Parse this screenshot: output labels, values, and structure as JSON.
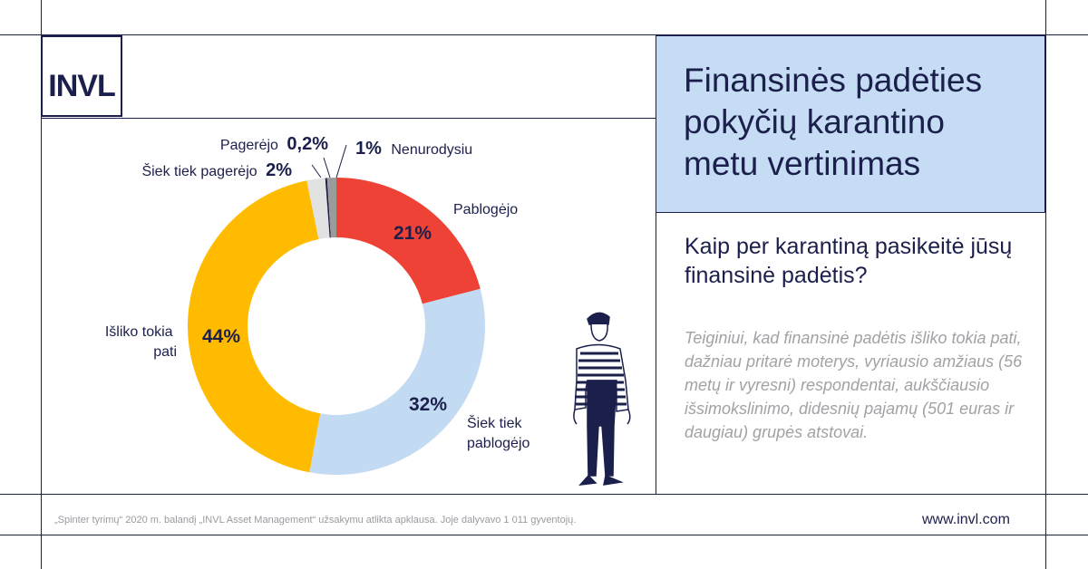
{
  "logo": {
    "text": "INVL"
  },
  "title": "Finansinės padėties pokyčių karantino metu vertinimas",
  "question": "Kaip per karantiną pasikeitė jūsų finansinė padėtis?",
  "note": "Teiginiui, kad finansinė padėtis išliko tokia pati, dažniau pritarė moterys, vyriausio amžiaus (56 metų ir vyresni) respondentai, aukščiausio išsimokslinimo, didesnių pajamų (501 euras ir daugiau) grupės atstovai.",
  "footer": {
    "source": "„Spinter tyrimų“ 2020 m. balandį „INVL Asset Management“ užsakymu atlikta apklausa. Joje dalyvavo 1 011 gyventojų.",
    "url": "www.invl.com"
  },
  "chart_data": {
    "type": "pie",
    "donut": true,
    "slices": [
      {
        "label": "Pablogėjo",
        "value": 21,
        "value_label": "21%",
        "color": "#ee4236"
      },
      {
        "label": "Šiek tiek pablogėjo",
        "value": 32,
        "value_label": "32%",
        "color": "#c3daf3"
      },
      {
        "label": "Išliko tokia pati",
        "value": 44,
        "value_label": "44%",
        "color": "#ffbb00"
      },
      {
        "label": "Šiek tiek pagerėjo",
        "value": 2,
        "value_label": "2%",
        "color": "#e2e2e2"
      },
      {
        "label": "Pagerėjo",
        "value": 0.2,
        "value_label": "0,2%",
        "color": "#1b1f4b"
      },
      {
        "label": "Nenurodysiu",
        "value": 1,
        "value_label": "1%",
        "color": "#9b9b9b"
      }
    ]
  }
}
